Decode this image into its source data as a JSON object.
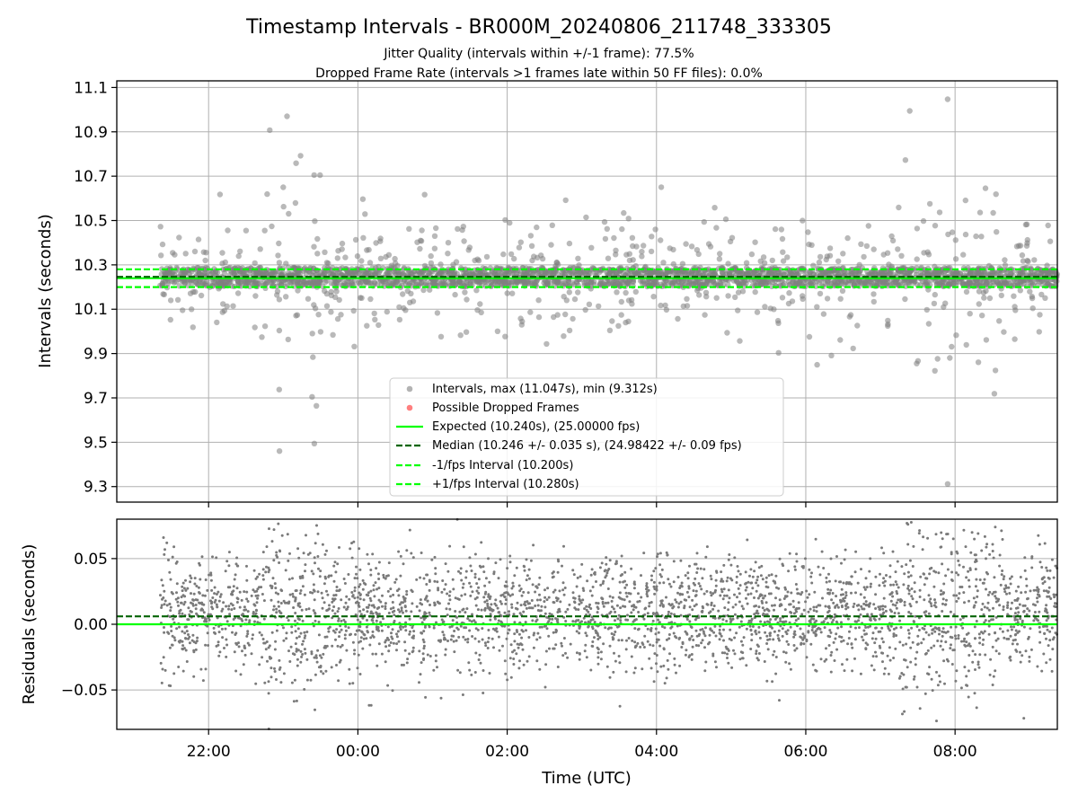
{
  "chart_data": [
    {
      "type": "scatter",
      "title": "Timestamp Intervals - BR000M_20240806_211748_333305",
      "subtitle_lines": [
        "Jitter Quality (intervals within +/-1 frame): 77.5%",
        "Dropped Frame Rate (intervals >1 frames late within 50 FF files): 0.0%"
      ],
      "xlabel": "",
      "ylabel": "Intervals (seconds)",
      "x_unit": "hours (UTC, continuing past midnight)",
      "xlim": [
        20.77,
        9.37
      ],
      "ylim": [
        9.23,
        11.13
      ],
      "x_ticks": [
        22,
        0,
        2,
        4,
        6,
        8
      ],
      "x_tick_labels": [
        "22:00",
        "00:00",
        "02:00",
        "04:00",
        "06:00",
        "08:00"
      ],
      "y_ticks": [
        9.3,
        9.5,
        9.7,
        9.9,
        10.1,
        10.3,
        10.5,
        10.7,
        10.9,
        11.1
      ],
      "y_tick_labels": [
        "9.3",
        "9.5",
        "9.7",
        "9.9",
        "10.1",
        "10.3",
        "10.5",
        "10.7",
        "10.9",
        "11.1"
      ],
      "grid": true,
      "legend_position": "lower-center",
      "data_range": {
        "x_start": 21.35,
        "x_end": 9.37
      },
      "series": [
        {
          "name": "Intervals, max (11.047s), min (9.312s)",
          "kind": "scatter",
          "color": "#808080",
          "max": 11.047,
          "min": 9.312
        },
        {
          "name": "Possible Dropped Frames",
          "kind": "scatter",
          "color": "#ff0000",
          "values": []
        },
        {
          "name": "Expected (10.240s), (25.00000 fps)",
          "kind": "hline",
          "y": 10.24,
          "color": "#00ff00",
          "style": "solid"
        },
        {
          "name": "Median (10.246 +/- 0.035 s), (24.98422 +/- 0.09 fps)",
          "kind": "hline",
          "y": 10.246,
          "color": "#006400",
          "style": "dashed"
        },
        {
          "name": "-1/fps Interval (10.200s)",
          "kind": "hline",
          "y": 10.2,
          "color": "#00ff00",
          "style": "dashed"
        },
        {
          "name": "+1/fps Interval (10.280s)",
          "kind": "hline",
          "y": 10.28,
          "color": "#00ff00",
          "style": "dashed"
        }
      ]
    },
    {
      "type": "scatter",
      "xlabel": "Time (UTC)",
      "ylabel": "Residuals (seconds)",
      "xlim": [
        20.77,
        9.37
      ],
      "ylim": [
        -0.08,
        0.08
      ],
      "x_ticks": [
        22,
        0,
        2,
        4,
        6,
        8
      ],
      "x_tick_labels": [
        "22:00",
        "00:00",
        "02:00",
        "04:00",
        "06:00",
        "08:00"
      ],
      "y_ticks": [
        -0.05,
        0.0,
        0.05
      ],
      "y_tick_labels": [
        "−0.05",
        "0.00",
        "0.05"
      ],
      "grid": true,
      "series": [
        {
          "name": "",
          "kind": "scatter",
          "color": "#808080"
        },
        {
          "name": "",
          "kind": "hline",
          "y": 0.0,
          "color": "#00ff00",
          "style": "solid"
        },
        {
          "name": "",
          "kind": "hline",
          "y": 0.006,
          "color": "#006400",
          "style": "dashed"
        }
      ]
    }
  ]
}
